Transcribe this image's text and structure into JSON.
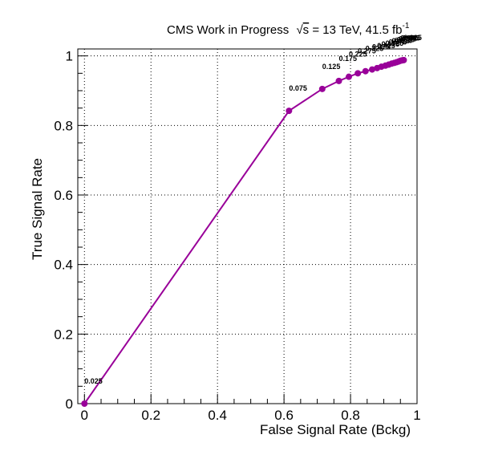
{
  "chart_data": {
    "type": "line",
    "title": "CMS Work in Progress",
    "title_energy": "s",
    "title_rest": " = 13 TeV, 41.5 fb",
    "title_superscript": "-1",
    "xlabel": "False Signal Rate (Bckg)",
    "ylabel": "True Signal Rate",
    "xlim": [
      -0.02,
      1.0
    ],
    "ylim": [
      0.0,
      1.02
    ],
    "grid": true,
    "x_ticks": [
      "0",
      "0.2",
      "0.4",
      "0.6",
      "0.8",
      "1"
    ],
    "y_ticks": [
      "0",
      "0.2",
      "0.4",
      "0.6",
      "0.8",
      "1"
    ],
    "marker_color": "#990099",
    "line_color": "#990099",
    "series": [
      {
        "x": [
          0.0,
          0.615,
          0.715,
          0.765,
          0.795,
          0.822,
          0.845,
          0.865,
          0.88,
          0.893,
          0.905,
          0.915,
          0.924,
          0.932,
          0.939,
          0.945,
          0.95,
          0.955,
          0.96
        ],
        "y": [
          0.0,
          0.842,
          0.905,
          0.928,
          0.94,
          0.95,
          0.956,
          0.961,
          0.965,
          0.969,
          0.972,
          0.975,
          0.978,
          0.98,
          0.982,
          0.984,
          0.986,
          0.987,
          0.988
        ]
      }
    ],
    "annotations": [
      {
        "text": "0.025",
        "x": 0.0,
        "y": 0.0
      },
      {
        "text": "0.075",
        "x": 0.615,
        "y": 0.842
      },
      {
        "text": "0.125",
        "x": 0.715,
        "y": 0.905
      },
      {
        "text": "0.175",
        "x": 0.765,
        "y": 0.928
      },
      {
        "text": "0.225",
        "x": 0.795,
        "y": 0.94
      },
      {
        "text": "0.275",
        "x": 0.822,
        "y": 0.95
      },
      {
        "text": "0.325",
        "x": 0.845,
        "y": 0.956
      },
      {
        "text": "0.375",
        "x": 0.865,
        "y": 0.961
      },
      {
        "text": "0.425",
        "x": 0.88,
        "y": 0.965
      },
      {
        "text": "0.475",
        "x": 0.893,
        "y": 0.969
      },
      {
        "text": "0.525",
        "x": 0.905,
        "y": 0.972
      },
      {
        "text": "0.575",
        "x": 0.915,
        "y": 0.975
      },
      {
        "text": "0.625",
        "x": 0.924,
        "y": 0.978
      },
      {
        "text": "0.675",
        "x": 0.932,
        "y": 0.98
      },
      {
        "text": "0.725",
        "x": 0.939,
        "y": 0.982
      },
      {
        "text": "0.775",
        "x": 0.945,
        "y": 0.984
      },
      {
        "text": "0.825",
        "x": 0.95,
        "y": 0.986
      },
      {
        "text": "0.875",
        "x": 0.955,
        "y": 0.987
      },
      {
        "text": "0.925",
        "x": 0.96,
        "y": 0.988
      }
    ]
  }
}
